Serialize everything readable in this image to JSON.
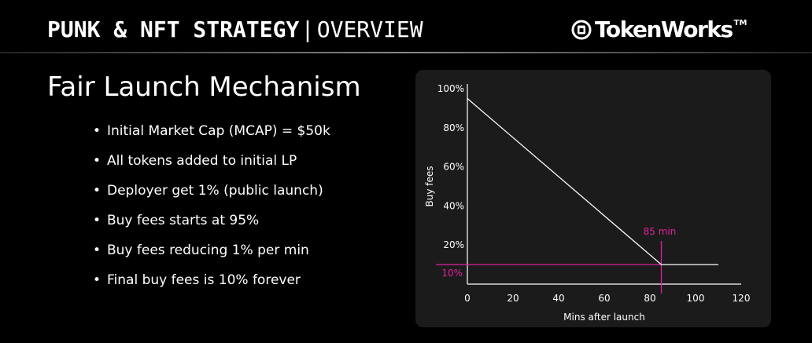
{
  "header": {
    "title_strong": "PUNK & NFT STRATEGY",
    "separator": "|",
    "title_light": "OVERVIEW",
    "brand_name": "TokenWorks",
    "brand_tm": "TM"
  },
  "slide": {
    "title": "Fair Launch Mechanism",
    "bullets": [
      "Initial Market Cap (MCAP) = $50k",
      "All tokens added to initial LP",
      "Deployer get 1% (public launch)",
      "Buy fees starts at 95%",
      "Buy fees reducing 1% per min",
      "Final buy fees is 10% forever"
    ]
  },
  "colors": {
    "background": "#000000",
    "panel": "#1b1b1b",
    "line": "#ffffff",
    "accent": "#e0209c"
  },
  "chart_data": {
    "type": "line",
    "xlabel": "Mins after launch",
    "ylabel": "Buy fees",
    "xlim": [
      0,
      120
    ],
    "ylim": [
      0,
      100
    ],
    "x_ticks": [
      0,
      20,
      40,
      60,
      80,
      100,
      120
    ],
    "y_ticks": [
      20,
      40,
      60,
      80,
      100
    ],
    "x_tick_labels": [
      "0",
      "20",
      "40",
      "60",
      "80",
      "100",
      "120"
    ],
    "y_tick_labels": [
      "20%",
      "40%",
      "60%",
      "80%",
      "100%"
    ],
    "grid": false,
    "series": [
      {
        "x": [
          0,
          85,
          110
        ],
        "y": [
          95,
          10,
          10
        ]
      }
    ],
    "annotations": [
      {
        "label": "85 min",
        "x": 85
      },
      {
        "label": "10%",
        "y": 10
      }
    ]
  }
}
